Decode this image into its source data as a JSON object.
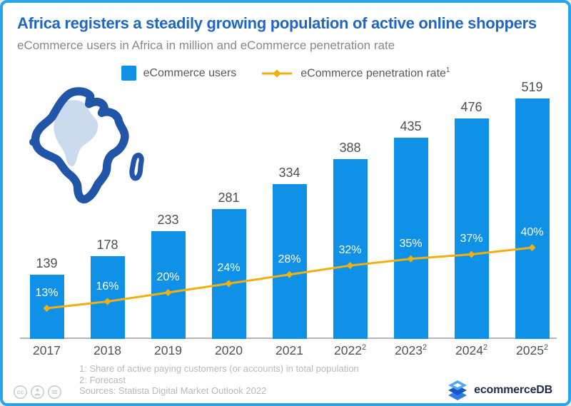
{
  "header": {
    "title": "Africa registers a steadily growing population of active online shoppers",
    "subtitle": "eCommerce users in Africa in million and eCommerce penetration rate"
  },
  "legend": {
    "users_label": "eCommerce users",
    "rate_label": "eCommerce penetration rate",
    "rate_sup": "1"
  },
  "chart_data": {
    "type": "bar",
    "title": "Africa registers a steadily growing population of active online shoppers",
    "subtitle": "eCommerce users in Africa in million and eCommerce penetration rate",
    "categories": [
      "2017",
      "2018",
      "2019",
      "2020",
      "2021",
      "2022",
      "2023",
      "2024",
      "2025"
    ],
    "forecast_sup": "2",
    "forecast_from_index": 5,
    "series": [
      {
        "name": "eCommerce users",
        "type": "bar",
        "unit": "million",
        "values": [
          139,
          178,
          233,
          281,
          334,
          388,
          435,
          476,
          519
        ]
      },
      {
        "name": "eCommerce penetration rate",
        "type": "line",
        "unit": "%",
        "values": [
          13,
          16,
          20,
          24,
          28,
          32,
          35,
          37,
          40
        ],
        "labels": [
          "13%",
          "16%",
          "20%",
          "24%",
          "28%",
          "32%",
          "35%",
          "37%",
          "40%"
        ]
      }
    ],
    "legend_position": "top",
    "grid": false,
    "ylim": [
      0,
      560
    ]
  },
  "footer": {
    "note1": "1: Share of active paying customers (or accounts) in total population",
    "note2": "2: Forecast",
    "sources": "Sources: Statista Digital Market Outlook 2022",
    "brand": "ecommerceDB"
  },
  "colors": {
    "bar": "#1091e8",
    "line": "#f0b011",
    "title": "#2166c2",
    "border": "#29a5e9",
    "map_outline": "#2155a8",
    "map_fill": "#ccdaee"
  }
}
